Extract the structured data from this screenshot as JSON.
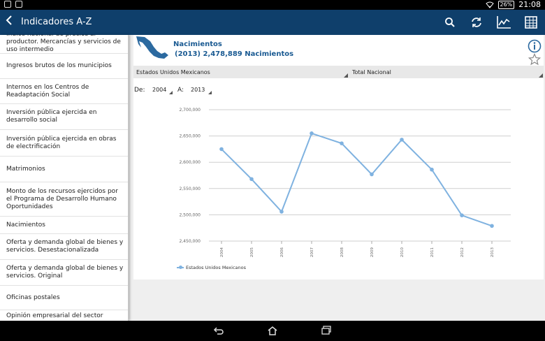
{
  "status_bar": {
    "battery": "26%",
    "time": "21:08"
  },
  "app_bar": {
    "title": "Indicadores A-Z"
  },
  "sidebar": {
    "items": [
      {
        "label": "Índice nacional de precios al productor. Mercancías y servicios de uso intermedio"
      },
      {
        "label": "Ingresos brutos de los municipios"
      },
      {
        "label": "Internos en los Centros de Readaptación Social"
      },
      {
        "label": "Inversión pública ejercida en desarrollo social"
      },
      {
        "label": "Inversión pública ejercida en obras de electrificación"
      },
      {
        "label": "Matrimonios"
      },
      {
        "label": "Monto de los recursos ejercidos por el Programa de Desarrollo Humano Oportunidades"
      },
      {
        "label": "Nacimientos"
      },
      {
        "label": "Oferta y demanda global de bienes y servicios. Desestacionalizada"
      },
      {
        "label": "Oferta y demanda global de bienes y servicios. Original"
      },
      {
        "label": "Oficinas postales"
      },
      {
        "label": "Opinión empresarial del sector"
      }
    ]
  },
  "indicator": {
    "title": "Nacimientos",
    "latest": "(2013) 2,478,889 Nacimientos",
    "region": "Estados Unidos Mexicanos",
    "total": "Total Nacional",
    "de_label": "De:",
    "from_year": "2004",
    "a_label": "A:",
    "to_year": "2013"
  },
  "chart_data": {
    "type": "line",
    "x": [
      "2004",
      "2005",
      "2006",
      "2007",
      "2008",
      "2009",
      "2010",
      "2011",
      "2012",
      "2013"
    ],
    "series": [
      {
        "name": "Estados Unidos Mexicanos",
        "values": [
          2625000,
          2568000,
          2506000,
          2655000,
          2636000,
          2577000,
          2643000,
          2586000,
          2499000,
          2478889
        ]
      }
    ],
    "yticks": [
      "2,700,000",
      "2,650,000",
      "2,600,000",
      "2,550,000",
      "2,500,000",
      "2,450,000"
    ],
    "ylim": [
      2450000,
      2700000
    ],
    "grid": true,
    "legend": "bottom-left",
    "color": "#7fb2e0"
  }
}
